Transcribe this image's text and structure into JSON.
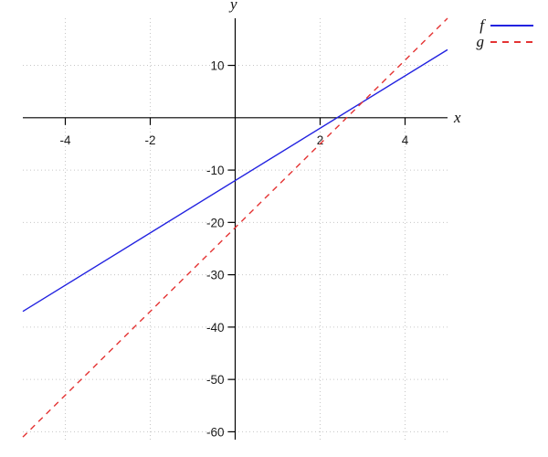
{
  "chart_data": {
    "type": "line",
    "title": "",
    "xlabel": "x",
    "ylabel": "y",
    "xlim": [
      -5,
      5
    ],
    "ylim": [
      -61.5,
      19
    ],
    "x_ticks": [
      -4,
      -2,
      2,
      4
    ],
    "y_ticks": [
      10,
      -10,
      -20,
      -30,
      -40,
      -50,
      -60
    ],
    "grid": true,
    "legend_position": "top-right",
    "series": [
      {
        "name": "f",
        "color": "#2222e0",
        "line_style": "solid",
        "points": [
          [
            -5,
            -37
          ],
          [
            5,
            13
          ]
        ]
      },
      {
        "name": "g",
        "color": "#e43333",
        "line_style": "dashed",
        "points": [
          [
            -5,
            -61
          ],
          [
            5,
            19
          ]
        ]
      }
    ]
  },
  "colors": {
    "axis": "#000000",
    "grid": "#c6c6c6",
    "tick_text": "#1c1c1c",
    "background": "#ffffff"
  }
}
